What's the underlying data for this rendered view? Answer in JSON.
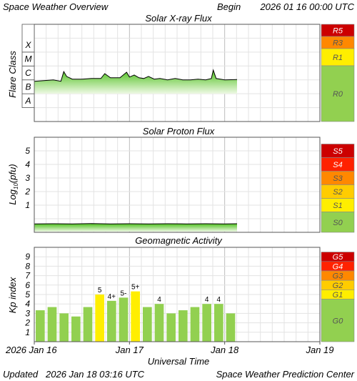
{
  "header": {
    "title": "Space Weather Overview",
    "begin_label": "Begin",
    "begin_value": "2026 01 16 00:00 UTC"
  },
  "footer": {
    "updated_label": "Updated",
    "updated_value": "2026 Jan 18 03:16 UTC",
    "credit": "Space Weather Prediction Center"
  },
  "x_axis": {
    "label": "Universal Time",
    "ticks": [
      {
        "label": "2026 Jan 16",
        "day": 0
      },
      {
        "label": "Jan 17",
        "day": 1
      },
      {
        "label": "Jan 18",
        "day": 2
      },
      {
        "label": "Jan 19",
        "day": 3
      }
    ],
    "range_days": [
      0,
      3
    ]
  },
  "chart_data": [
    {
      "type": "area",
      "title": "Solar X-ray Flux",
      "ylabel": "Flare Class",
      "classes": [
        "A",
        "B",
        "C",
        "M",
        "X"
      ],
      "ylim_log_wm2": [
        -9,
        -2
      ],
      "grid": true,
      "series_log_wm2": [
        [
          0.0,
          -6.1
        ],
        [
          0.1,
          -6.05
        ],
        [
          0.2,
          -6.0
        ],
        [
          0.28,
          -6.1
        ],
        [
          0.31,
          -5.4
        ],
        [
          0.34,
          -5.75
        ],
        [
          0.4,
          -5.95
        ],
        [
          0.5,
          -5.95
        ],
        [
          0.6,
          -5.9
        ],
        [
          0.7,
          -5.9
        ],
        [
          0.74,
          -5.55
        ],
        [
          0.8,
          -5.85
        ],
        [
          0.9,
          -5.85
        ],
        [
          0.97,
          -5.45
        ],
        [
          1.0,
          -5.8
        ],
        [
          1.05,
          -5.65
        ],
        [
          1.1,
          -5.85
        ],
        [
          1.15,
          -5.9
        ],
        [
          1.2,
          -5.75
        ],
        [
          1.26,
          -5.95
        ],
        [
          1.32,
          -5.9
        ],
        [
          1.4,
          -6.0
        ],
        [
          1.48,
          -5.9
        ],
        [
          1.56,
          -6.0
        ],
        [
          1.64,
          -6.0
        ],
        [
          1.72,
          -5.95
        ],
        [
          1.8,
          -6.0
        ],
        [
          1.86,
          -5.9
        ],
        [
          1.88,
          -5.3
        ],
        [
          1.91,
          -5.9
        ],
        [
          2.0,
          -6.0
        ],
        [
          2.13,
          -5.98
        ]
      ],
      "scale": [
        {
          "label": "R5",
          "color": "#cc0000"
        },
        {
          "label": "R3",
          "color": "#ff8800"
        },
        {
          "label": "R1",
          "color": "#ffee00"
        },
        {
          "label": "R0",
          "color": "#92d050"
        }
      ]
    },
    {
      "type": "area",
      "title": "Solar Proton Flux",
      "ylabel": "Log10(pfu)",
      "ylabel_base": "Log",
      "ylabel_sub": "10",
      "ylabel_rest": "(pfu)",
      "y_ticks": [
        1,
        2,
        3,
        4,
        5
      ],
      "ylim": [
        -1,
        6
      ],
      "grid": true,
      "series": [
        [
          0.0,
          -0.38
        ],
        [
          0.2,
          -0.37
        ],
        [
          0.4,
          -0.38
        ],
        [
          0.6,
          -0.36
        ],
        [
          0.8,
          -0.38
        ],
        [
          1.0,
          -0.37
        ],
        [
          1.2,
          -0.38
        ],
        [
          1.4,
          -0.37
        ],
        [
          1.6,
          -0.38
        ],
        [
          1.8,
          -0.37
        ],
        [
          2.0,
          -0.38
        ],
        [
          2.13,
          -0.37
        ]
      ],
      "scale": [
        {
          "label": "S5",
          "color": "#cc0000"
        },
        {
          "label": "S4",
          "color": "#ff2200"
        },
        {
          "label": "S3",
          "color": "#ff8800"
        },
        {
          "label": "S2",
          "color": "#ffcc00"
        },
        {
          "label": "S1",
          "color": "#ffee00"
        },
        {
          "label": "S0",
          "color": "#92d050"
        }
      ]
    },
    {
      "type": "bar",
      "title": "Geomagnetic Activity",
      "ylabel": "Kp index",
      "y_ticks": [
        1,
        2,
        3,
        4,
        5,
        6,
        7,
        8,
        9
      ],
      "ylim": [
        0,
        10
      ],
      "grid": true,
      "bar_interval_hours": 3,
      "values": [
        3.33,
        3.67,
        3.0,
        2.67,
        3.67,
        5.0,
        4.33,
        4.67,
        5.33,
        3.67,
        4.0,
        3.0,
        3.33,
        3.67,
        4.0,
        4.0,
        3.0
      ],
      "labels": [
        "",
        "",
        "",
        "",
        "",
        "5",
        "4+",
        "5-",
        "5+",
        "",
        "4",
        "",
        "",
        "",
        "4",
        "4",
        ""
      ],
      "colors": {
        "quiet": "#92d050",
        "storm": "#ffee00"
      },
      "scale": [
        {
          "label": "G5",
          "color": "#cc0000"
        },
        {
          "label": "G4",
          "color": "#ff2200"
        },
        {
          "label": "G3",
          "color": "#ff8800"
        },
        {
          "label": "G2",
          "color": "#ffcc00"
        },
        {
          "label": "G1",
          "color": "#ffee00"
        },
        {
          "label": "G0",
          "color": "#92d050"
        }
      ]
    }
  ]
}
